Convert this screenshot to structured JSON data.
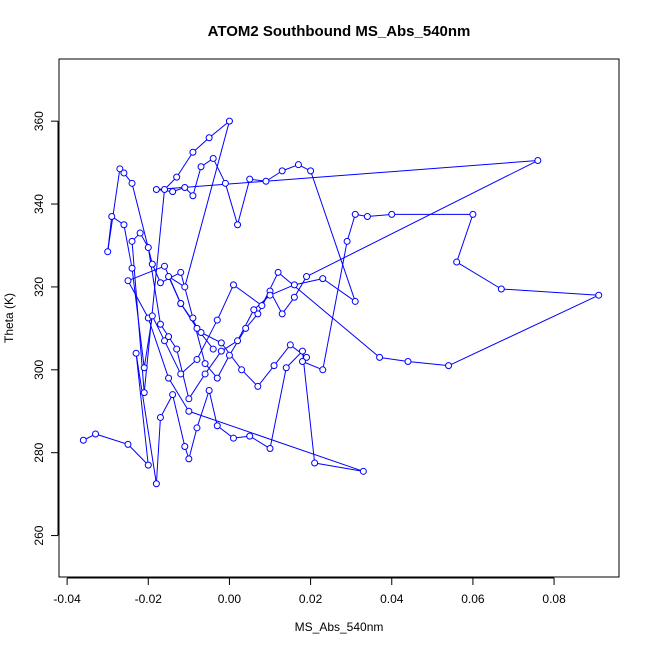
{
  "chart_data": {
    "type": "scatter",
    "title": "ATOM2 Southbound MS_Abs_540nm",
    "xlabel": "MS_Abs_540nm",
    "ylabel": "Theta (K)",
    "xlim": [
      -0.042,
      0.096
    ],
    "ylim": [
      250,
      375
    ],
    "xticks": [
      "-0.04",
      "-0.02",
      "0.00",
      "0.02",
      "0.04",
      "0.06",
      "0.08"
    ],
    "xtick_values": [
      -0.04,
      -0.02,
      0.0,
      0.02,
      0.04,
      0.06,
      0.08
    ],
    "yticks": [
      "260",
      "280",
      "300",
      "320",
      "340",
      "360"
    ],
    "ytick_values": [
      260,
      280,
      300,
      320,
      340,
      360
    ],
    "grid": false,
    "series_color": "#0000ff",
    "connected": true,
    "x": [
      -0.036,
      -0.033,
      -0.025,
      -0.02,
      -0.023,
      -0.018,
      -0.017,
      -0.014,
      -0.011,
      -0.01,
      -0.008,
      -0.005,
      -0.003,
      0.001,
      0.005,
      0.01,
      0.014,
      0.018,
      0.021,
      0.033,
      -0.01,
      -0.015,
      -0.02,
      -0.025,
      -0.016,
      -0.012,
      -0.007,
      -0.002,
      0.003,
      0.007,
      0.011,
      0.015,
      0.019,
      0.018,
      0.023,
      0.029,
      0.031,
      0.034,
      0.04,
      0.06,
      0.056,
      0.067,
      0.091,
      0.054,
      0.044,
      0.037,
      0.012,
      0.008,
      0.001,
      -0.003,
      -0.008,
      -0.012,
      -0.016,
      -0.019,
      -0.021,
      -0.024,
      -0.026,
      -0.029,
      -0.03,
      -0.027,
      -0.026,
      -0.024,
      -0.019,
      -0.017,
      -0.012,
      -0.009,
      -0.006,
      -0.003,
      0.0,
      0.004,
      0.007,
      0.01,
      0.013,
      0.016,
      0.019,
      0.076,
      -0.018,
      -0.014,
      -0.011,
      -0.009,
      -0.007,
      -0.004,
      -0.001,
      0.002,
      0.005,
      0.009,
      0.013,
      0.017,
      0.02,
      0.031,
      0.023,
      0.016,
      0.01,
      0.006,
      0.002,
      -0.002,
      -0.006,
      -0.01,
      -0.013,
      -0.015,
      -0.017,
      -0.02,
      -0.022,
      -0.024,
      -0.021,
      -0.016,
      -0.013,
      -0.009,
      -0.005,
      0.0,
      -0.011,
      -0.015,
      -0.012,
      -0.008,
      -0.004
    ],
    "y": [
      283,
      284.5,
      282,
      277,
      304,
      272.5,
      288.5,
      294,
      281.5,
      278.5,
      286,
      295,
      286.5,
      283.5,
      284,
      281,
      300.5,
      304.5,
      277.5,
      275.5,
      290,
      298,
      312.5,
      321.5,
      325,
      316,
      309,
      306.5,
      300,
      296,
      301,
      306,
      303,
      302,
      300,
      331,
      337.5,
      337,
      337.5,
      337.5,
      326,
      319.5,
      318,
      301,
      302,
      303,
      323.5,
      315.5,
      320.5,
      312,
      302.5,
      299,
      307,
      313,
      300.5,
      324.5,
      335,
      337,
      328.5,
      348.5,
      347.5,
      345,
      325.5,
      321,
      323.5,
      312.5,
      301.5,
      298,
      303.5,
      310,
      313.5,
      319,
      313.5,
      317.5,
      322.5,
      350.5,
      343.5,
      343,
      344,
      342,
      349,
      351,
      345,
      335,
      346,
      345.5,
      348,
      349.5,
      348,
      316.5,
      322,
      320.5,
      318,
      314.5,
      307,
      304.5,
      299,
      293,
      305,
      308,
      311,
      329.5,
      333,
      331,
      294.5,
      343.5,
      346.5,
      352.5,
      356,
      360,
      320,
      322.5,
      316,
      310,
      305
    ]
  }
}
